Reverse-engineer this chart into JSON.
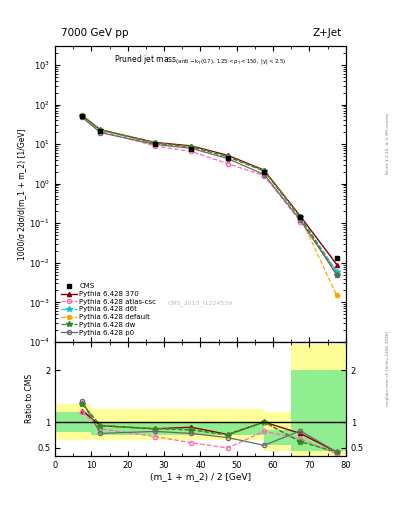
{
  "title_left": "7000 GeV pp",
  "title_right": "Z+Jet",
  "ylabel_main": "1000/σ 2dσ/d(m_1 + m_2) [1/GeV]",
  "ylabel_ratio": "Ratio to CMS",
  "xlabel": "(m_1 + m_2) / 2 [GeV]",
  "watermark": "CMS_2013_I1224539",
  "right_label": "mcplots.cern.ch [arXiv:1306.3436]",
  "rivet_label": "Rivet 3.1.10, ≥ 3.3M events",
  "x_data": [
    7.5,
    12.5,
    27.5,
    37.5,
    47.5,
    57.5,
    67.5,
    77.5
  ],
  "cms_y": [
    50.0,
    22.0,
    10.0,
    7.5,
    4.5,
    2.0,
    0.14,
    0.013
  ],
  "py370_y": [
    52.0,
    23.0,
    11.0,
    9.0,
    5.2,
    2.2,
    0.15,
    0.009
  ],
  "py_atlascsc_y": [
    50.0,
    21.0,
    9.0,
    6.5,
    3.2,
    1.6,
    0.11,
    0.006
  ],
  "py_d6t_y": [
    52.0,
    23.0,
    10.5,
    8.5,
    4.8,
    2.1,
    0.14,
    0.006
  ],
  "py_default_y": [
    53.0,
    23.0,
    10.5,
    8.5,
    4.8,
    2.1,
    0.14,
    0.0015
  ],
  "py_dw_y": [
    52.0,
    23.0,
    10.5,
    8.5,
    4.8,
    2.1,
    0.14,
    0.005
  ],
  "py_p0_y": [
    47.0,
    19.5,
    9.8,
    7.8,
    4.3,
    1.7,
    0.12,
    0.005
  ],
  "ratio_370": [
    1.22,
    0.93,
    0.87,
    0.9,
    0.76,
    1.0,
    0.78,
    0.42
  ],
  "ratio_atlascsc": [
    1.2,
    0.87,
    0.72,
    0.6,
    0.5,
    0.82,
    0.68,
    0.38
  ],
  "ratio_d6t": [
    1.35,
    0.93,
    0.87,
    0.85,
    0.75,
    1.0,
    0.62,
    0.42
  ],
  "ratio_default": [
    1.35,
    0.93,
    0.87,
    0.85,
    0.75,
    1.0,
    0.62,
    0.42
  ],
  "ratio_dw": [
    1.35,
    0.93,
    0.87,
    0.85,
    0.75,
    1.0,
    0.62,
    0.42
  ],
  "ratio_p0": [
    1.4,
    0.78,
    0.82,
    0.78,
    0.7,
    0.55,
    0.83,
    0.42
  ],
  "band_edges": [
    0,
    10,
    57.5,
    65,
    80
  ],
  "band_yellow_lo": [
    0.65,
    0.65,
    0.45,
    0.35
  ],
  "band_yellow_hi": [
    1.35,
    1.25,
    1.2,
    2.5
  ],
  "band_green_lo": [
    0.8,
    0.75,
    0.55,
    0.45
  ],
  "band_green_hi": [
    1.2,
    1.0,
    0.85,
    2.0
  ],
  "colors": {
    "cms": "#000000",
    "py370": "#8B0000",
    "py_atlascsc": "#FF69B4",
    "py_d6t": "#00CED1",
    "py_default": "#FFA500",
    "py_dw": "#228B22",
    "py_p0": "#696969"
  }
}
